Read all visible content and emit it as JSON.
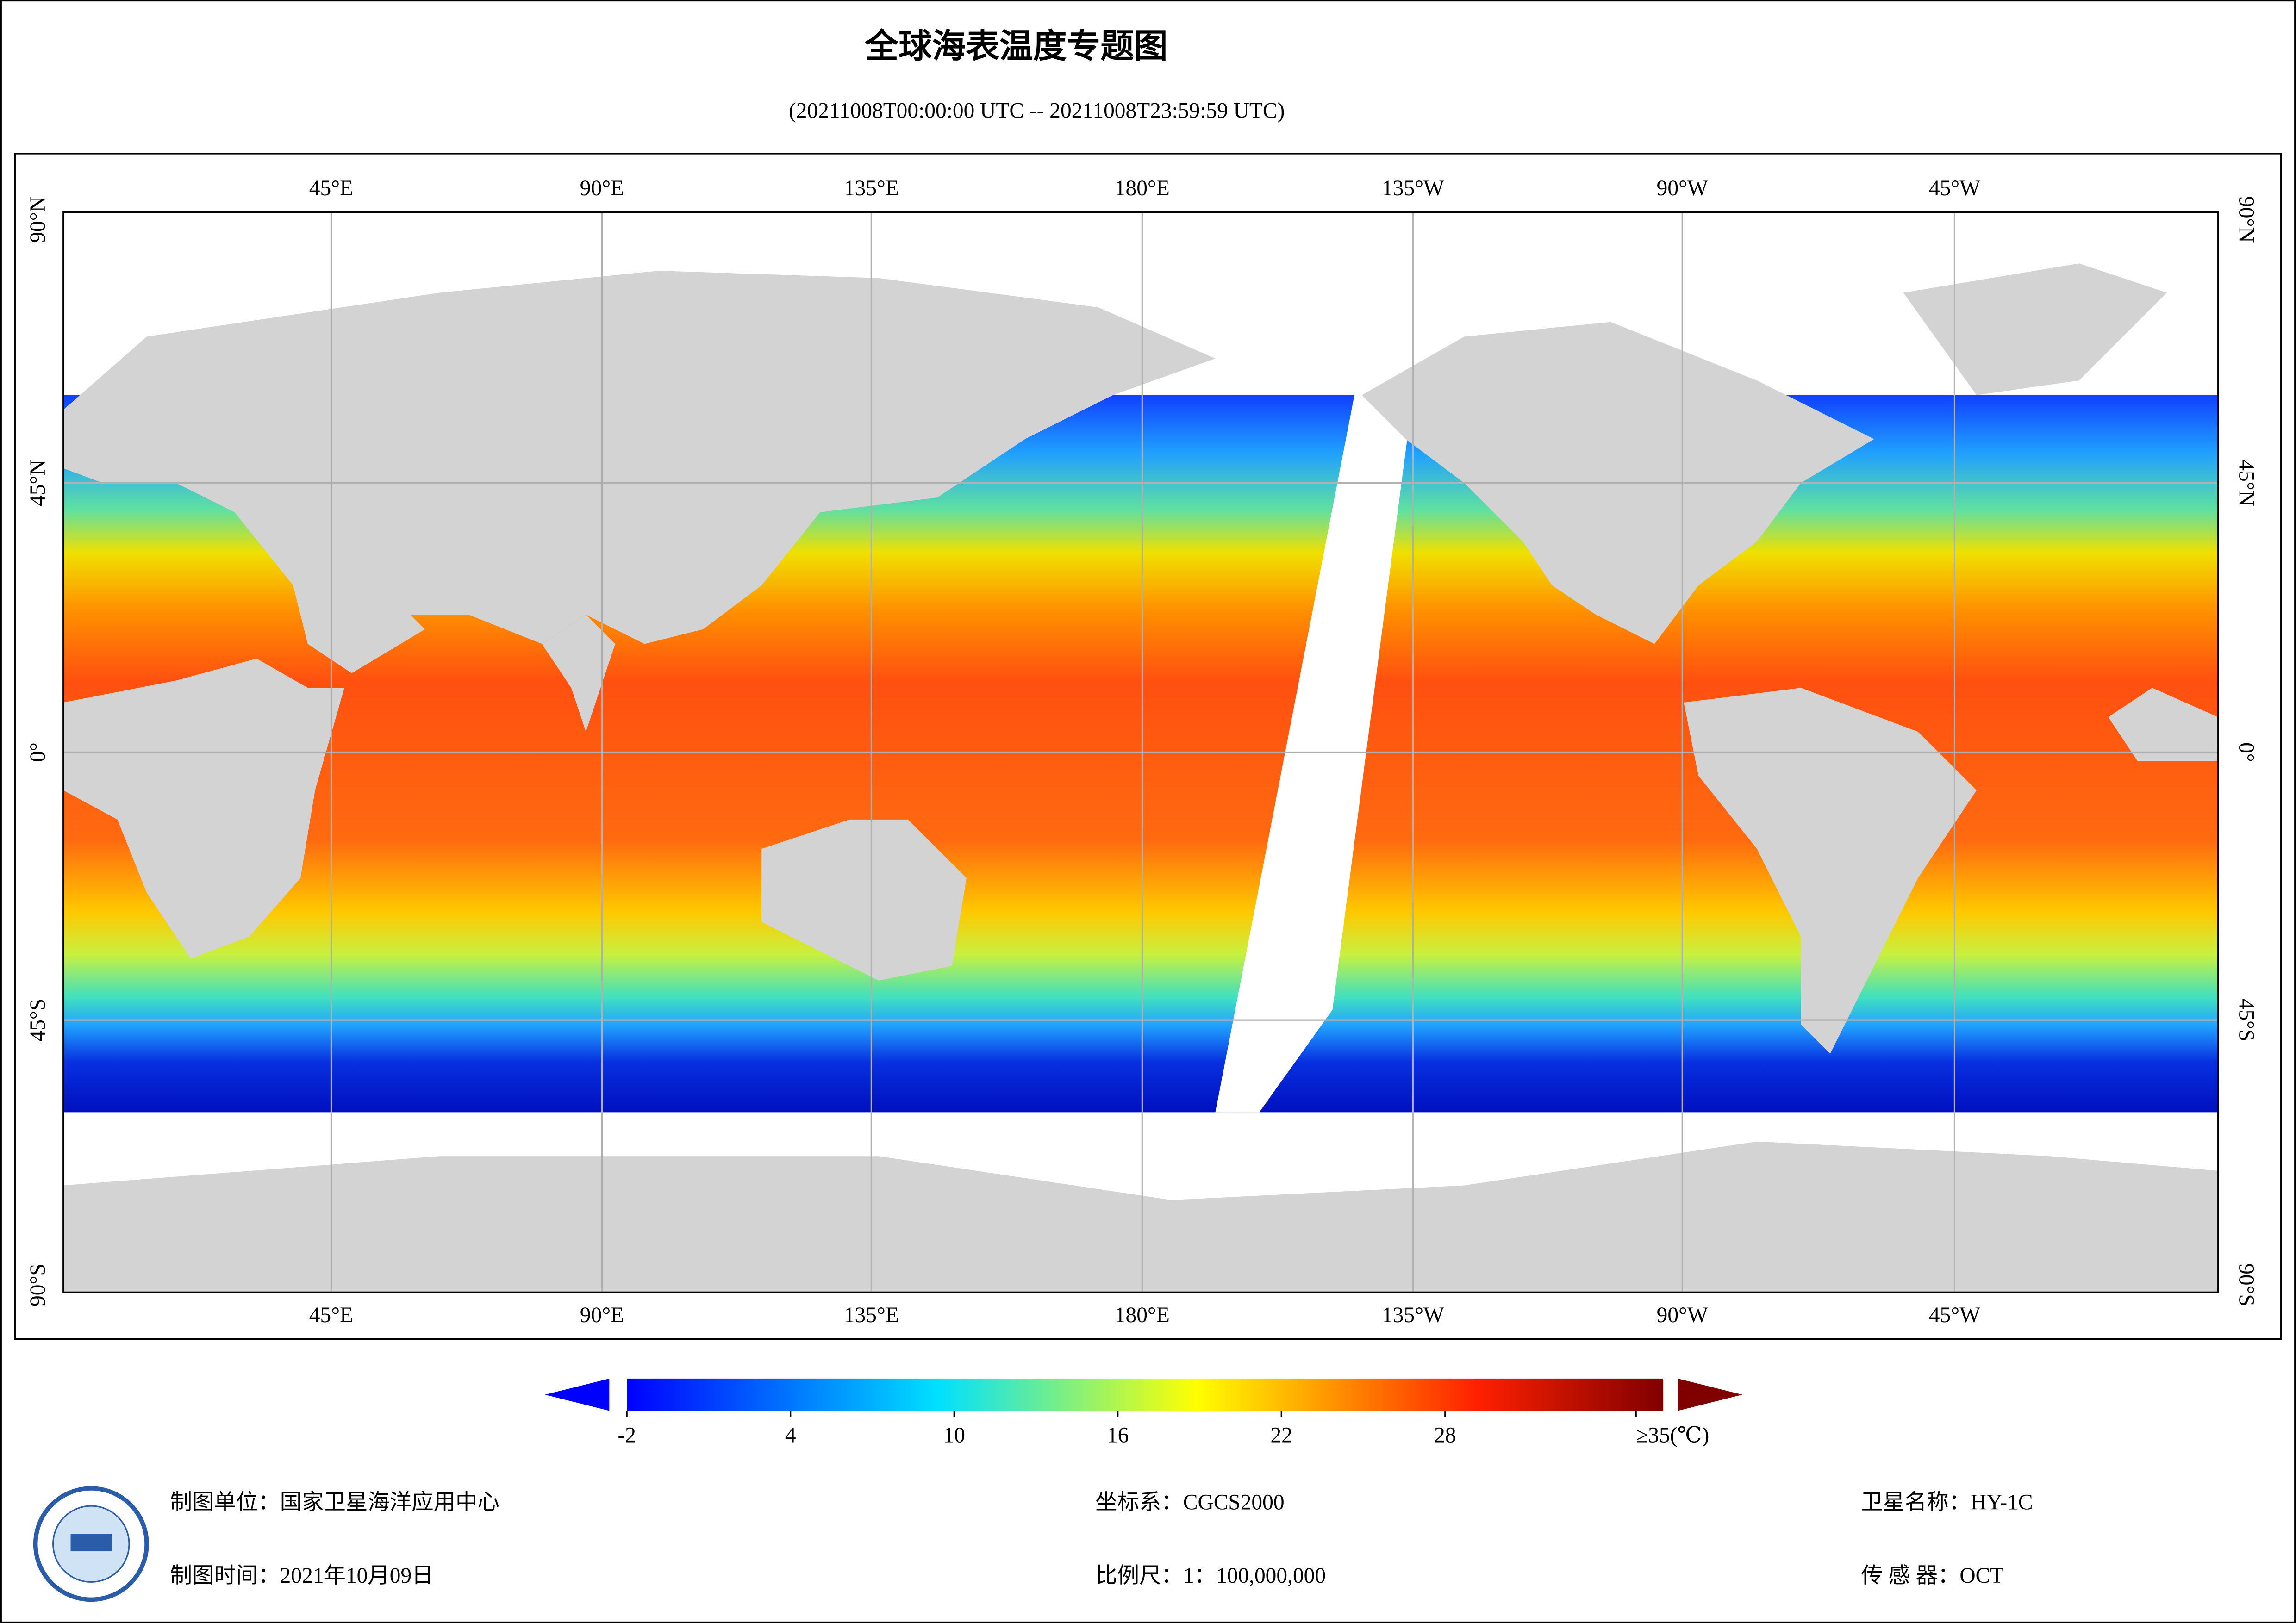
{
  "header": {
    "title": "全球海表温度专题图",
    "subtitle": "(20211008T00:00:00 UTC -- 20211008T23:59:59 UTC)"
  },
  "map": {
    "lon_labels": [
      "45°E",
      "90°E",
      "135°E",
      "180°E",
      "135°W",
      "90°W",
      "45°W"
    ],
    "lat_labels": [
      "90°N",
      "45°N",
      "0°",
      "45°S",
      "90°S"
    ]
  },
  "colorbar": {
    "lim": [
      -2,
      36
    ],
    "ticks": [
      -2,
      4,
      10,
      16,
      22,
      28,
      {
        "value": 35,
        "label": "≥35(℃)"
      }
    ]
  },
  "footer": {
    "unit": "制图单位：国家卫星海洋应用中心",
    "date": "制图时间：2021年10月09日",
    "crs": "坐标系：CGCS2000",
    "scale": "比例尺：1：100,000,000",
    "satellite": "卫星名称：HY-1C",
    "sensor": "传 感 器：OCT"
  }
}
